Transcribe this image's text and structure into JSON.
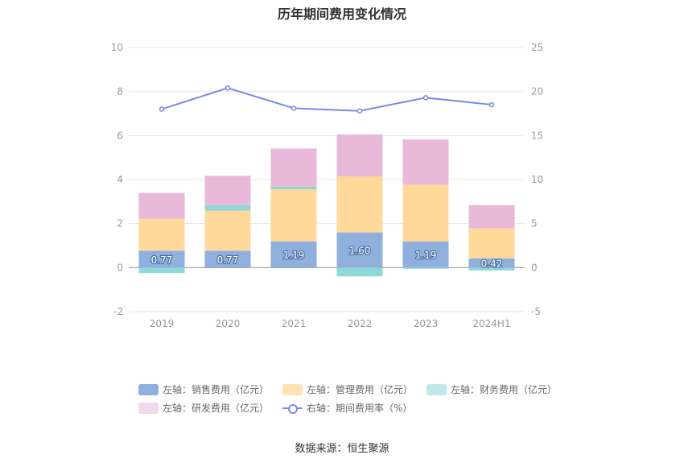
{
  "title": "历年期间费用变化情况",
  "source": "数据来源：恒生聚源",
  "legend": [
    {
      "label": "左轴：销售费用（亿元）",
      "color": "#8fb0dc"
    },
    {
      "label": "左轴：管理费用（亿元）",
      "color": "#ffe3b6"
    },
    {
      "label": "左轴：财务费用（亿元）",
      "color": "#bfe9ea"
    },
    {
      "label": "左轴：研发费用（亿元）",
      "color": "#f0d9ea"
    },
    {
      "label": "右轴：期间费用率（%）",
      "color": "#7f87e6"
    }
  ],
  "chart_data": {
    "type": "bar",
    "categories": [
      "2019",
      "2020",
      "2021",
      "2022",
      "2023",
      "2024H1"
    ],
    "left_axis": {
      "ylim": [
        -2,
        10
      ],
      "ticks": [
        -2,
        0,
        2,
        4,
        6,
        8,
        10
      ]
    },
    "right_axis": {
      "ylim": [
        -5,
        25
      ],
      "ticks": [
        -5,
        0,
        5,
        10,
        15,
        20,
        25
      ]
    },
    "series": [
      {
        "name": "左轴：销售费用（亿元）",
        "axis": "left",
        "color": "#8fb0dc",
        "values": [
          0.77,
          0.77,
          1.19,
          1.6,
          1.19,
          0.42
        ],
        "labels": [
          "0.77",
          "0.77",
          "1.19",
          "1.60",
          "1.19",
          "0.42"
        ]
      },
      {
        "name": "左轴：管理费用（亿元）",
        "axis": "left",
        "color": "#ffd89a",
        "values": [
          1.45,
          1.82,
          2.37,
          2.55,
          2.58,
          1.37
        ]
      },
      {
        "name": "左轴：财务费用（亿元）",
        "axis": "left",
        "color": "#8fd8d8",
        "values": [
          -0.25,
          0.25,
          0.12,
          -0.4,
          -0.05,
          -0.13
        ]
      },
      {
        "name": "左轴：研发费用（亿元）",
        "axis": "left",
        "color": "#e8b9d8",
        "values": [
          1.17,
          1.33,
          1.73,
          1.9,
          2.05,
          1.05
        ]
      },
      {
        "name": "右轴：期间费用率（%）",
        "axis": "right",
        "type": "line",
        "color": "#7f87e6",
        "values": [
          18.0,
          20.4,
          18.1,
          17.8,
          19.3,
          18.5
        ]
      }
    ]
  }
}
